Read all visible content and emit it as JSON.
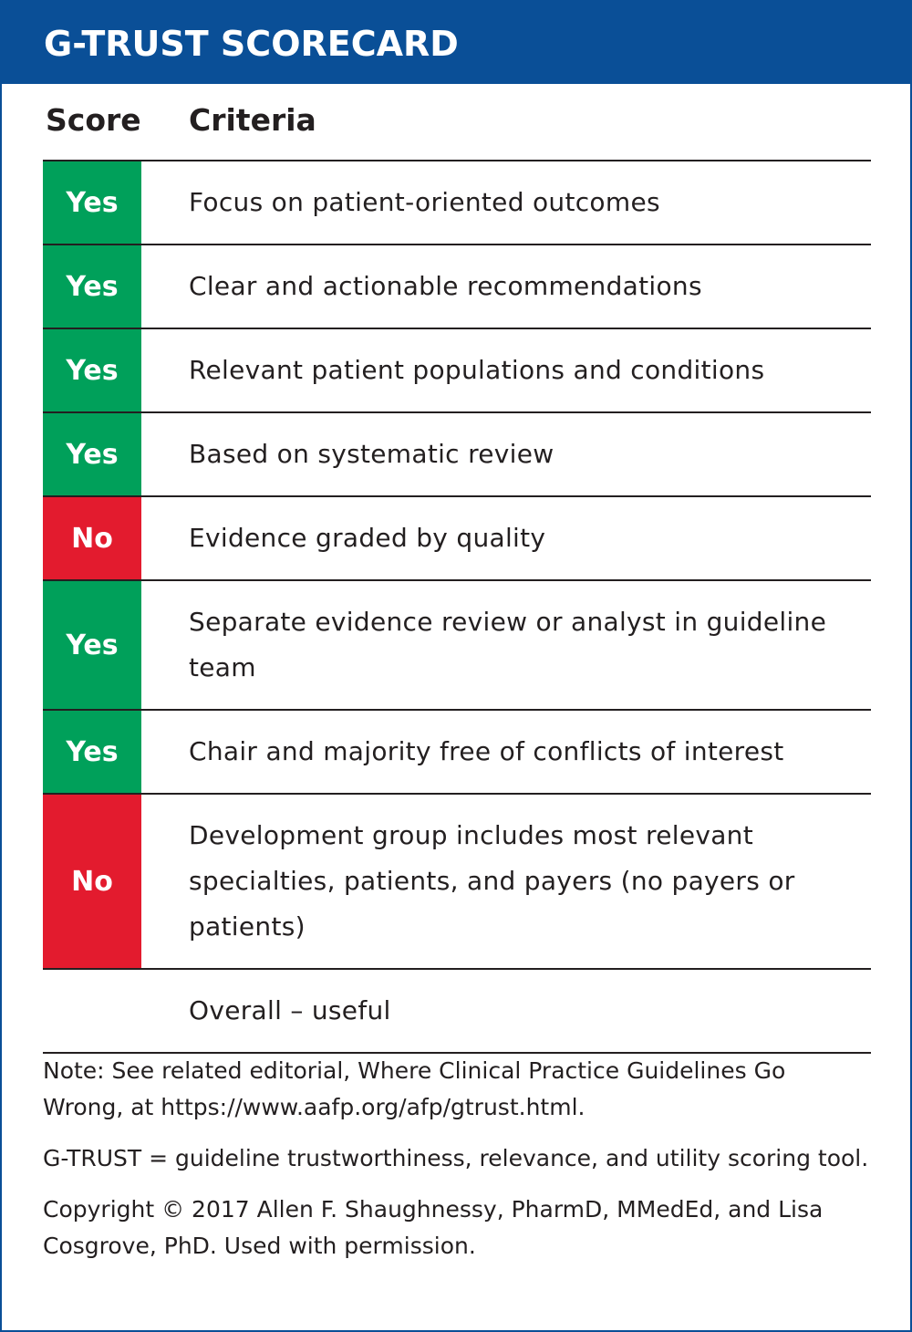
{
  "header": {
    "title": "G-TRUST SCORECARD"
  },
  "table": {
    "columns": [
      "Score",
      "Criteria"
    ],
    "rows": [
      {
        "score": "Yes",
        "criteria": "Focus on patient-oriented outcomes",
        "color": "#00a05a"
      },
      {
        "score": "Yes",
        "criteria": "Clear and actionable recommendations",
        "color": "#00a05a"
      },
      {
        "score": "Yes",
        "criteria": "Relevant patient populations and conditions",
        "color": "#00a05a"
      },
      {
        "score": "Yes",
        "criteria": "Based on systematic review",
        "color": "#00a05a"
      },
      {
        "score": "No",
        "criteria": "Evidence graded by quality",
        "color": "#e31b2e"
      },
      {
        "score": "Yes",
        "criteria": "Separate evidence review or analyst in guideline team",
        "color": "#00a05a"
      },
      {
        "score": "Yes",
        "criteria": "Chair and majority free of conflicts of interest",
        "color": "#00a05a"
      },
      {
        "score": "No",
        "criteria": "Development group includes most relevant specialties, patients, and payers (no payers or patients)",
        "color": "#e31b2e"
      }
    ],
    "overall": "Overall – useful"
  },
  "notes": [
    "Note: See related editorial, Where Clinical Practice Guidelines Go Wrong, at https://www.aafp.org/afp/gtrust.html.",
    "G-TRUST = guideline trustworthiness, relevance, and utility scoring tool.",
    "Copyright © 2017 Allen F. Shaughnessy, PharmD, MMedEd, and Lisa Cosgrove, PhD. Used with permission."
  ]
}
